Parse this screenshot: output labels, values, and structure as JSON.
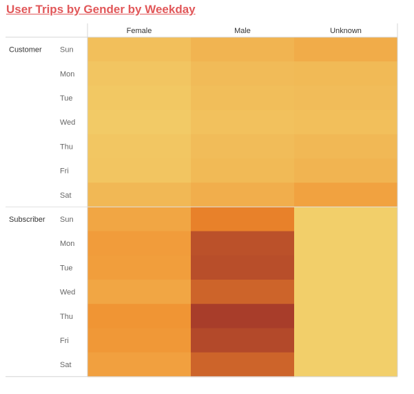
{
  "title": "User Trips by Gender by Weekday",
  "chart_data": {
    "type": "heatmap",
    "title": "User Trips by Gender by Weekday",
    "columns": [
      "Female",
      "Male",
      "Unknown"
    ],
    "row_groups": [
      "Customer",
      "Subscriber"
    ],
    "days": [
      "Sun",
      "Mon",
      "Tue",
      "Wed",
      "Thu",
      "Fri",
      "Sat"
    ],
    "intensity_scale": [
      0,
      1
    ],
    "colors": {
      "low": "#f2d06b",
      "mid": "#f08a2a",
      "high": "#a0342a"
    },
    "cells": [
      [
        [
          0.12,
          0.2,
          0.26
        ],
        [
          0.08,
          0.15,
          0.16
        ],
        [
          0.06,
          0.13,
          0.14
        ],
        [
          0.04,
          0.11,
          0.12
        ],
        [
          0.07,
          0.14,
          0.17
        ],
        [
          0.08,
          0.16,
          0.2
        ],
        [
          0.17,
          0.24,
          0.33
        ]
      ],
      [
        [
          0.3,
          0.55,
          0.01
        ],
        [
          0.37,
          0.83,
          0.01
        ],
        [
          0.36,
          0.85,
          0.01
        ],
        [
          0.3,
          0.72,
          0.01
        ],
        [
          0.42,
          0.95,
          0.01
        ],
        [
          0.4,
          0.88,
          0.01
        ],
        [
          0.34,
          0.72,
          0.01
        ]
      ]
    ]
  }
}
